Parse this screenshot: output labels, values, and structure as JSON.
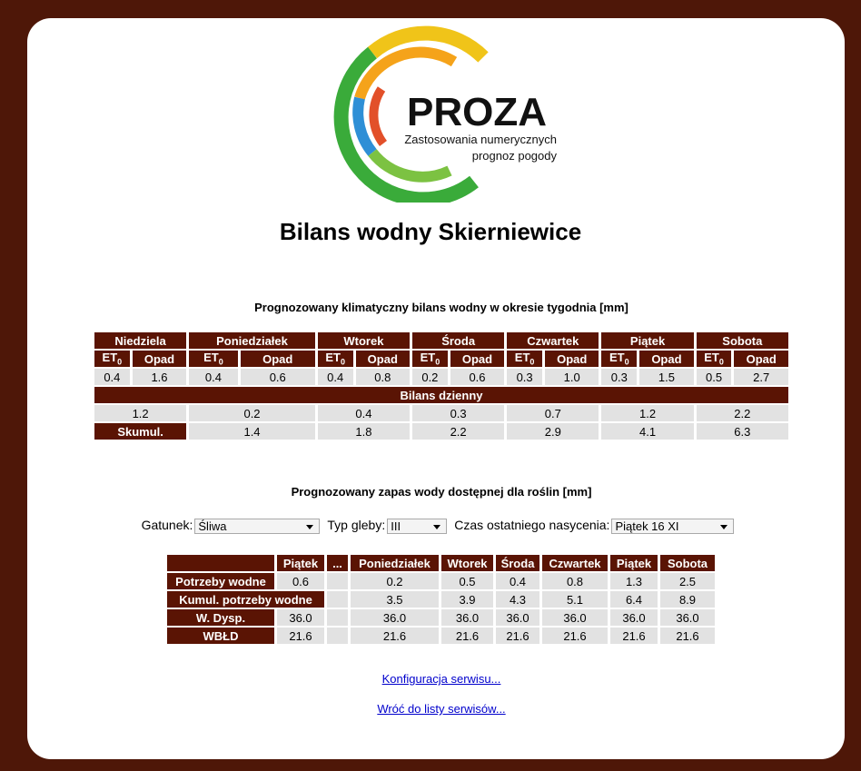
{
  "logo": {
    "name": "PROZA",
    "tagline": [
      "Zastosowania numerycznych",
      "prognoz pogody"
    ]
  },
  "title": "Bilans wodny Skierniewice",
  "climate_table": {
    "caption": "Prognozowany klimatyczny bilans wodny w okresie tygodnia [mm]",
    "days": [
      "Niedziela",
      "Poniedziałek",
      "Wtorek",
      "Środa",
      "Czwartek",
      "Piątek",
      "Sobota"
    ],
    "et_label": "ET",
    "et_subscript": "0",
    "precip_label": "Opad",
    "et0": [
      "0.4",
      "0.4",
      "0.4",
      "0.2",
      "0.3",
      "0.3",
      "0.5"
    ],
    "precip": [
      "1.6",
      "0.6",
      "0.8",
      "0.6",
      "1.0",
      "1.5",
      "2.7"
    ],
    "daily_label": "Bilans dzienny",
    "daily": [
      "1.2",
      "0.2",
      "0.4",
      "0.3",
      "0.7",
      "1.2",
      "2.2"
    ],
    "cumulative_label": "Skumul.",
    "cumulative": [
      "1.4",
      "1.8",
      "2.2",
      "2.9",
      "4.1",
      "6.3"
    ]
  },
  "form": {
    "fields": [
      {
        "label": "Gatunek:",
        "value": "Śliwa"
      },
      {
        "label": "Typ gleby:",
        "value": "III"
      },
      {
        "label": "Czas ostatniego nasycenia:",
        "value": "Piątek 16 XI"
      }
    ]
  },
  "reserve_table": {
    "caption": "Prognozowany zapas wody dostępnej dla roślin [mm]",
    "columns": [
      "Piątek",
      "...",
      "Poniedziałek",
      "Wtorek",
      "Środa",
      "Czwartek",
      "Piątek",
      "Sobota"
    ],
    "rows": [
      {
        "label": "Potrzeby wodne",
        "values": [
          "0.6",
          "0.2",
          "0.5",
          "0.4",
          "0.8",
          "1.3",
          "2.5"
        ]
      },
      {
        "label": "Kumul. potrzeby wodne",
        "values": [
          "3.5",
          "3.9",
          "4.3",
          "5.1",
          "6.4",
          "8.9"
        ]
      },
      {
        "label": "W. Dysp.",
        "values": [
          "36.0",
          "36.0",
          "36.0",
          "36.0",
          "36.0",
          "36.0",
          "36.0"
        ]
      },
      {
        "label": "WBŁD",
        "values": [
          "21.6",
          "21.6",
          "21.6",
          "21.6",
          "21.6",
          "21.6",
          "21.6"
        ]
      }
    ]
  },
  "links": [
    "Konfiguracja serwisu...",
    "Wróć do listy serwisów..."
  ]
}
